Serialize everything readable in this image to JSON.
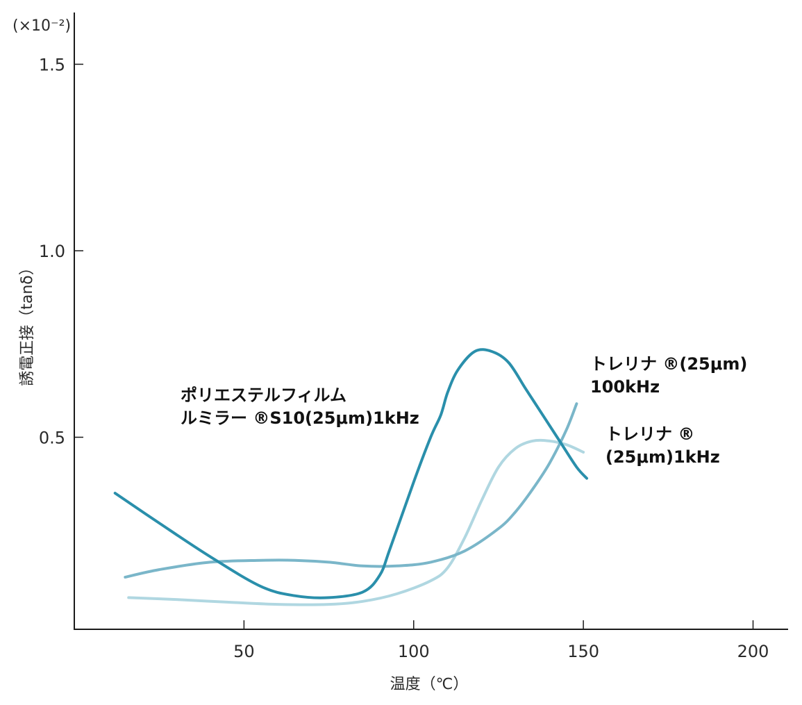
{
  "chart_data": {
    "type": "line",
    "title": "",
    "xlabel": "温度（℃）",
    "ylabel": "誘電正接（tanδ）",
    "y_multiplier": "(×10⁻²)",
    "xlim": [
      0,
      210
    ],
    "ylim": [
      0,
      1.65
    ],
    "x_ticks": [
      50,
      100,
      150,
      200
    ],
    "y_ticks": [
      0.5,
      1.0,
      1.5
    ],
    "x_tick_labels": [
      "50",
      "100",
      "150",
      "200"
    ],
    "y_tick_labels": [
      "0.5",
      "1.0",
      "1.5"
    ],
    "grid": false,
    "legend": "none",
    "series": [
      {
        "color": "#2a8fab",
        "x": [
          12,
          25,
          40,
          55,
          65,
          75,
          85,
          90,
          93,
          100,
          105,
          108,
          110,
          113,
          118,
          123,
          128,
          133,
          138,
          143,
          148,
          151
        ],
        "y": [
          0.35,
          0.27,
          0.18,
          0.1,
          0.075,
          0.07,
          0.085,
          0.13,
          0.2,
          0.38,
          0.5,
          0.56,
          0.62,
          0.68,
          0.73,
          0.73,
          0.7,
          0.63,
          0.56,
          0.49,
          0.42,
          0.39
        ]
      },
      {
        "color": "#7ab6c9",
        "x": [
          15,
          25,
          40,
          55,
          65,
          75,
          85,
          95,
          105,
          115,
          125,
          130,
          135,
          140,
          145,
          148
        ],
        "y": [
          0.125,
          0.145,
          0.165,
          0.17,
          0.17,
          0.165,
          0.155,
          0.155,
          0.165,
          0.195,
          0.255,
          0.3,
          0.36,
          0.43,
          0.52,
          0.59
        ]
      },
      {
        "color": "#b0d7e1",
        "x": [
          16,
          30,
          45,
          60,
          75,
          85,
          95,
          105,
          110,
          115,
          120,
          125,
          130,
          135,
          140,
          145,
          150
        ],
        "y": [
          0.07,
          0.065,
          0.058,
          0.052,
          0.052,
          0.06,
          0.08,
          0.115,
          0.15,
          0.23,
          0.33,
          0.42,
          0.47,
          0.49,
          0.49,
          0.48,
          0.46
        ]
      }
    ],
    "annotations": [
      {
        "lines": [
          "ポリエステルフィルム",
          "ルミラー ®S10(25μm)1kHz"
        ]
      },
      {
        "lines": [
          "トレリナ ®(25μm)",
          "100kHz"
        ]
      },
      {
        "lines": [
          "トレリナ ®",
          "(25μm)1kHz"
        ]
      }
    ]
  }
}
